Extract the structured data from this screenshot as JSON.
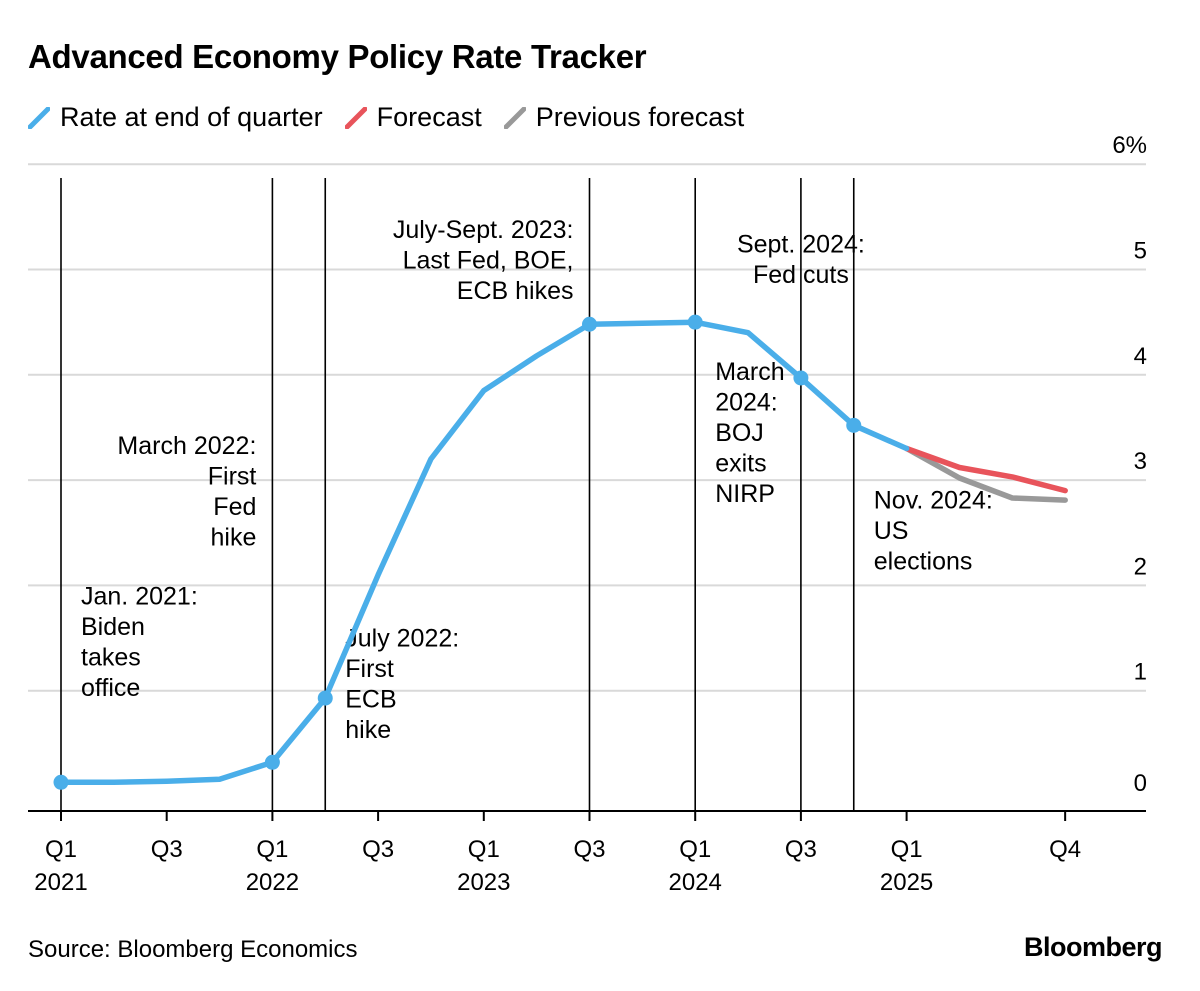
{
  "chart_data": {
    "type": "line",
    "title": "Advanced Economy Policy Rate Tracker",
    "source": "Source: Bloomberg Economics",
    "brand": "Bloomberg",
    "ylim": [
      0,
      6
    ],
    "y_ticks": [
      {
        "value": 0,
        "label": "0"
      },
      {
        "value": 1,
        "label": "1"
      },
      {
        "value": 2,
        "label": "2"
      },
      {
        "value": 3,
        "label": "3"
      },
      {
        "value": 4,
        "label": "4"
      },
      {
        "value": 5,
        "label": "5"
      },
      {
        "value": 6,
        "label": "6%"
      }
    ],
    "x_ticks": [
      {
        "q": 0,
        "line1": "Q1",
        "line2": "2021"
      },
      {
        "q": 2,
        "line1": "Q3",
        "line2": ""
      },
      {
        "q": 4,
        "line1": "Q1",
        "line2": "2022"
      },
      {
        "q": 6,
        "line1": "Q3",
        "line2": ""
      },
      {
        "q": 8,
        "line1": "Q1",
        "line2": "2023"
      },
      {
        "q": 10,
        "line1": "Q3",
        "line2": ""
      },
      {
        "q": 12,
        "line1": "Q1",
        "line2": "2024"
      },
      {
        "q": 14,
        "line1": "Q3",
        "line2": ""
      },
      {
        "q": 16,
        "line1": "Q1",
        "line2": "2025"
      },
      {
        "q": 19,
        "line1": "Q4",
        "line2": ""
      }
    ],
    "series": [
      {
        "name": "Rate at end of quarter",
        "color": "#4aaee9",
        "points": [
          {
            "q": 0,
            "v": 0.13
          },
          {
            "q": 1,
            "v": 0.13
          },
          {
            "q": 2,
            "v": 0.14
          },
          {
            "q": 3,
            "v": 0.16
          },
          {
            "q": 4,
            "v": 0.32
          },
          {
            "q": 5,
            "v": 0.93
          },
          {
            "q": 6,
            "v": 2.1
          },
          {
            "q": 7,
            "v": 3.2
          },
          {
            "q": 8,
            "v": 3.85
          },
          {
            "q": 9,
            "v": 4.18
          },
          {
            "q": 10,
            "v": 4.48
          },
          {
            "q": 11,
            "v": 4.49
          },
          {
            "q": 12,
            "v": 4.5
          },
          {
            "q": 13,
            "v": 4.4
          },
          {
            "q": 14,
            "v": 3.97
          },
          {
            "q": 15,
            "v": 3.52
          },
          {
            "q": 16,
            "v": 3.3
          }
        ],
        "markers": [
          0,
          4,
          5,
          10,
          12,
          14,
          15
        ]
      },
      {
        "name": "Forecast",
        "color": "#e8545b",
        "points": [
          {
            "q": 16,
            "v": 3.3
          },
          {
            "q": 17,
            "v": 3.12
          },
          {
            "q": 18,
            "v": 3.03
          },
          {
            "q": 19,
            "v": 2.9
          }
        ]
      },
      {
        "name": "Previous forecast",
        "color": "#999999",
        "points": [
          {
            "q": 16,
            "v": 3.3
          },
          {
            "q": 17,
            "v": 3.02
          },
          {
            "q": 18,
            "v": 2.83
          },
          {
            "q": 19,
            "v": 2.81
          }
        ]
      }
    ],
    "events": [
      {
        "q": 0,
        "lines": [
          "Jan. 2021:",
          "Biden",
          "takes",
          "office"
        ],
        "align": "left",
        "anchor_v": 1.82
      },
      {
        "q": 4,
        "lines": [
          "March 2022:",
          "First",
          "Fed",
          "hike"
        ],
        "align": "right",
        "anchor_v": 3.25
      },
      {
        "q": 5,
        "lines": [
          "July 2022:",
          "First",
          "ECB",
          "hike"
        ],
        "align": "left",
        "anchor_v": 1.42
      },
      {
        "q": 10,
        "lines": [
          "July-Sept. 2023:",
          "Last Fed, BOE,",
          "ECB hikes"
        ],
        "align": "right",
        "anchor_v": 5.3
      },
      {
        "q": 12,
        "lines": [
          "March",
          "2024:",
          "BOJ",
          "exits",
          "NIRP"
        ],
        "align": "left",
        "anchor_v": 3.95
      },
      {
        "q": 14,
        "lines": [
          "Sept. 2024:",
          "Fed cuts"
        ],
        "align": "middle",
        "anchor_v": 5.16
      },
      {
        "q": 15,
        "lines": [
          "Nov. 2024:",
          "US",
          "elections"
        ],
        "align": "left",
        "anchor_v": 2.73
      }
    ]
  }
}
